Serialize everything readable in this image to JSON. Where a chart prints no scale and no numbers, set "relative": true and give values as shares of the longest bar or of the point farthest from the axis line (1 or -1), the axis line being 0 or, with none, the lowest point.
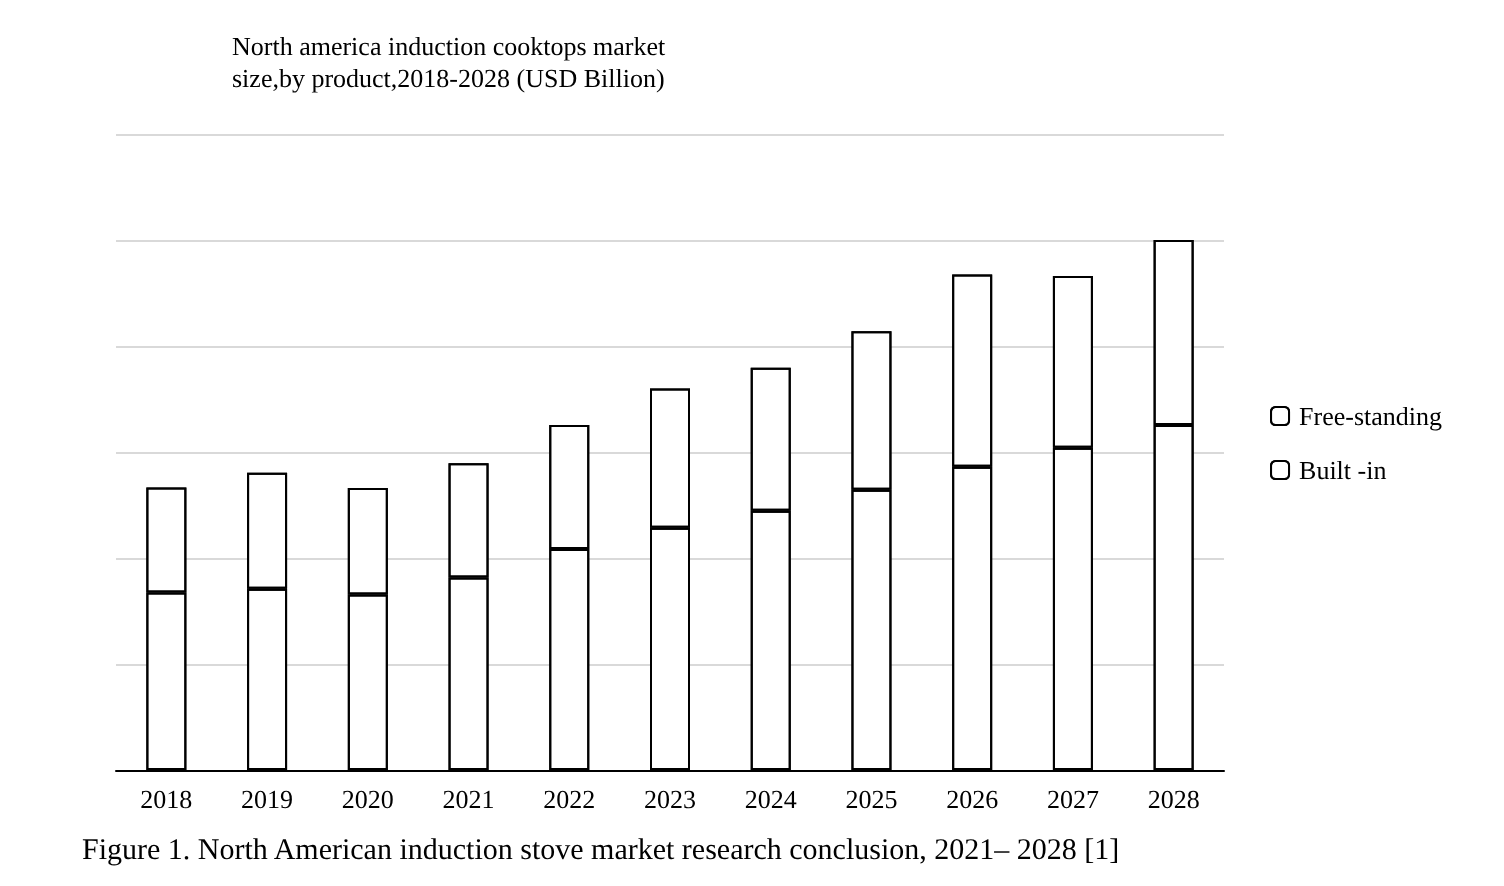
{
  "chart_data": {
    "type": "bar",
    "title": "North america induction cooktops market\nsize,by product,2018-2028 (USD Billion)",
    "annotations": [
      "Figure 1. North American induction stove market research conclusion, 2021– 2028 [1]"
    ],
    "categories": [
      "2018",
      "2019",
      "2020",
      "2021",
      "2022",
      "2023",
      "2024",
      "2025",
      "2026",
      "2027",
      "2028"
    ],
    "stacked": true,
    "relative": true,
    "grid": "y",
    "legend": "right",
    "series": [
      {
        "name": "Built -in",
        "color": "#ffffff",
        "values": [
          0.335,
          0.342,
          0.331,
          0.363,
          0.417,
          0.457,
          0.489,
          0.529,
          0.572,
          0.608,
          0.651
        ]
      },
      {
        "name": "Free-standing",
        "color": "#ffffff",
        "values": [
          0.198,
          0.219,
          0.201,
          0.216,
          0.234,
          0.263,
          0.27,
          0.299,
          0.363,
          0.324,
          0.349
        ]
      }
    ]
  }
}
